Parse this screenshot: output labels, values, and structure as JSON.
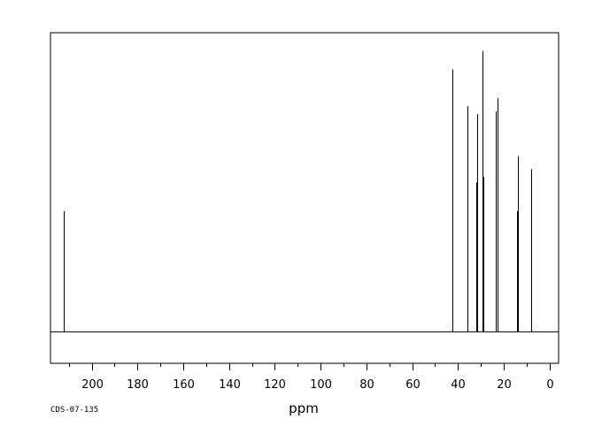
{
  "chart_data": {
    "type": "line",
    "xlabel": "ppm",
    "code": "CDS-07-135",
    "xlim": [
      218,
      -4
    ],
    "ylim": [
      -0.12,
      1.14
    ],
    "x_ticks": [
      200,
      180,
      160,
      140,
      120,
      100,
      80,
      60,
      40,
      20,
      0
    ],
    "x_tick_labels": [
      "200",
      "180",
      "160",
      "140",
      "120",
      "100",
      "80",
      "60",
      "40",
      "20",
      "0"
    ],
    "minor_tick_step": 10,
    "grid": false,
    "peaks": [
      {
        "ppm": 212.2,
        "intensity": 0.46
      },
      {
        "ppm": 42.4,
        "intensity": 1.0
      },
      {
        "ppm": 35.9,
        "intensity": 0.86
      },
      {
        "ppm": 31.8,
        "intensity": 0.57
      },
      {
        "ppm": 31.5,
        "intensity": 0.83
      },
      {
        "ppm": 29.4,
        "intensity": 1.07
      },
      {
        "ppm": 28.9,
        "intensity": 0.59
      },
      {
        "ppm": 23.6,
        "intensity": 0.84
      },
      {
        "ppm": 22.6,
        "intensity": 0.89
      },
      {
        "ppm": 14.1,
        "intensity": 0.46
      },
      {
        "ppm": 13.8,
        "intensity": 0.67
      },
      {
        "ppm": 7.8,
        "intensity": 0.62
      }
    ]
  }
}
